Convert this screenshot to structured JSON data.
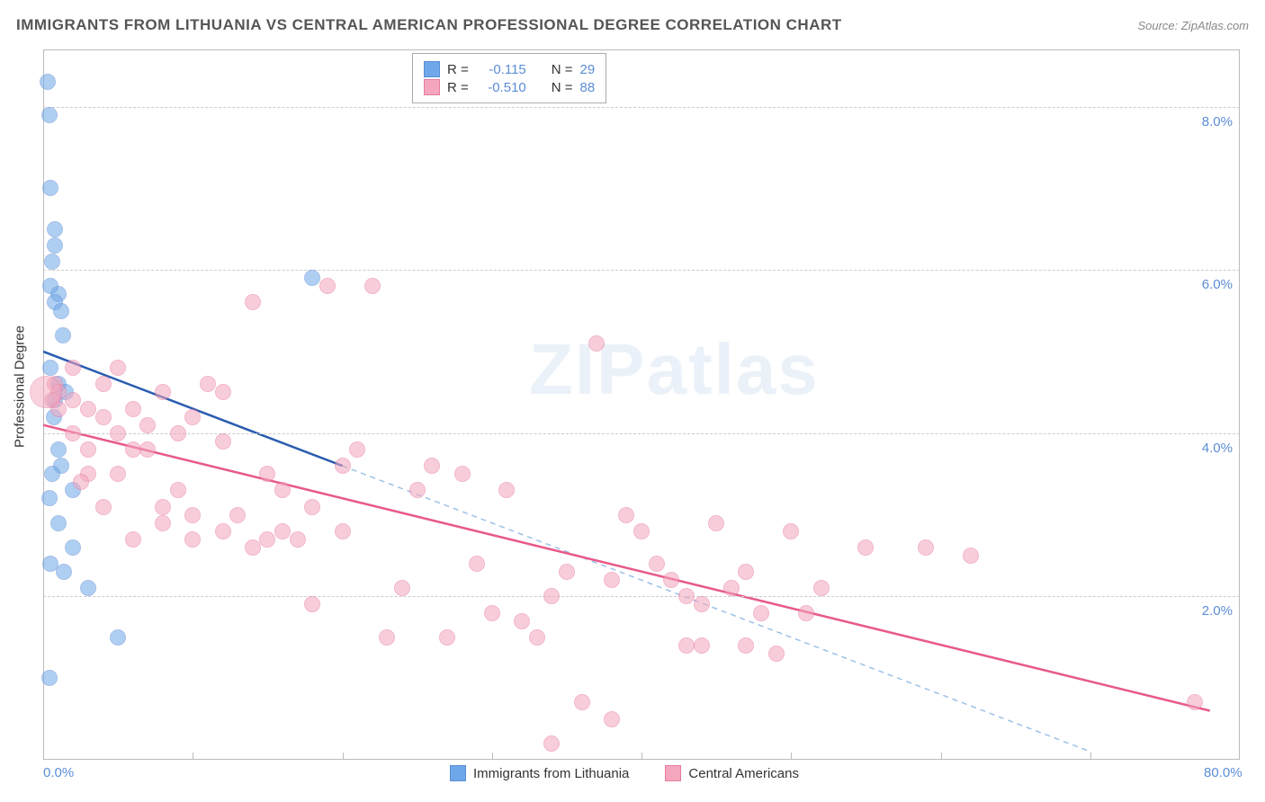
{
  "title": "IMMIGRANTS FROM LITHUANIA VS CENTRAL AMERICAN PROFESSIONAL DEGREE CORRELATION CHART",
  "source": "Source: ZipAtlas.com",
  "y_axis_label": "Professional Degree",
  "watermark": "ZIPatlas",
  "chart": {
    "type": "scatter",
    "xlim": [
      0,
      80
    ],
    "ylim": [
      0,
      8.7
    ],
    "x_ticks": [
      0,
      10,
      20,
      30,
      40,
      50,
      60,
      70,
      80
    ],
    "x_tick_labels": [
      "0.0%",
      "",
      "",
      "",
      "",
      "",
      "",
      "",
      "80.0%"
    ],
    "y_ticks": [
      2.0,
      4.0,
      6.0,
      8.0
    ],
    "y_tick_labels": [
      "2.0%",
      "4.0%",
      "6.0%",
      "8.0%"
    ],
    "background_color": "#ffffff",
    "grid_color": "#cccccc",
    "tick_label_color": "#5b8dd6",
    "point_radius": 9,
    "point_border_width": 1.5,
    "point_fill_opacity": 0.25
  },
  "series": [
    {
      "name": "Immigrants from Lithuania",
      "color": "#6fa8e8",
      "border_color": "#5b8dd6",
      "R": "-0.115",
      "N": "29",
      "trend": {
        "x1": 0,
        "y1": 5.0,
        "x2": 20,
        "y2": 3.6,
        "extend_x": 70,
        "extend_y": 0.1,
        "solid_color": "#2a5db0",
        "dash_color": "#9cc0e8",
        "width": 2.5
      },
      "points": [
        [
          0.3,
          8.3
        ],
        [
          0.4,
          7.9
        ],
        [
          0.5,
          7.0
        ],
        [
          0.8,
          6.5
        ],
        [
          0.8,
          6.3
        ],
        [
          1.0,
          5.7
        ],
        [
          0.8,
          5.6
        ],
        [
          1.2,
          5.5
        ],
        [
          1.3,
          5.2
        ],
        [
          0.5,
          4.8
        ],
        [
          1.0,
          4.6
        ],
        [
          1.5,
          4.5
        ],
        [
          0.7,
          4.2
        ],
        [
          1.0,
          3.8
        ],
        [
          1.2,
          3.6
        ],
        [
          0.6,
          3.5
        ],
        [
          2.0,
          3.3
        ],
        [
          1.0,
          2.9
        ],
        [
          2.0,
          2.6
        ],
        [
          0.5,
          2.4
        ],
        [
          1.4,
          2.3
        ],
        [
          3.0,
          2.1
        ],
        [
          0.4,
          1.0
        ],
        [
          5.0,
          1.5
        ],
        [
          0.5,
          5.8
        ],
        [
          18.0,
          5.9
        ],
        [
          0.8,
          4.4
        ],
        [
          0.4,
          3.2
        ],
        [
          0.6,
          6.1
        ]
      ]
    },
    {
      "name": "Central Americans",
      "color": "#f4a6bd",
      "border_color": "#e87ba0",
      "R": "-0.510",
      "N": "88",
      "trend": {
        "x1": 0,
        "y1": 4.1,
        "x2": 78,
        "y2": 0.6,
        "solid_color": "#e85a8a",
        "width": 2.5
      },
      "points": [
        [
          0.8,
          4.6
        ],
        [
          1.0,
          4.5
        ],
        [
          2.0,
          4.4
        ],
        [
          3.0,
          4.3
        ],
        [
          4.0,
          4.2
        ],
        [
          5.0,
          4.0
        ],
        [
          6.0,
          4.3
        ],
        [
          7.0,
          3.8
        ],
        [
          8.0,
          4.5
        ],
        [
          9.0,
          3.3
        ],
        [
          10.0,
          4.2
        ],
        [
          11.0,
          4.6
        ],
        [
          12.0,
          3.9
        ],
        [
          13.0,
          3.0
        ],
        [
          14.0,
          5.6
        ],
        [
          15.0,
          3.5
        ],
        [
          16.0,
          3.3
        ],
        [
          17.0,
          2.7
        ],
        [
          18.0,
          3.1
        ],
        [
          19.0,
          5.8
        ],
        [
          20.0,
          3.6
        ],
        [
          21.0,
          3.8
        ],
        [
          22.0,
          5.8
        ],
        [
          23.0,
          1.5
        ],
        [
          24.0,
          2.1
        ],
        [
          25.0,
          3.3
        ],
        [
          26.0,
          3.6
        ],
        [
          27.0,
          1.5
        ],
        [
          28.0,
          3.5
        ],
        [
          29.0,
          2.4
        ],
        [
          30.0,
          1.8
        ],
        [
          31.0,
          3.3
        ],
        [
          32.0,
          1.7
        ],
        [
          33.0,
          1.5
        ],
        [
          34.0,
          2.0
        ],
        [
          35.0,
          2.3
        ],
        [
          36.0,
          0.7
        ],
        [
          37.0,
          5.1
        ],
        [
          38.0,
          2.2
        ],
        [
          39.0,
          3.0
        ],
        [
          40.0,
          2.8
        ],
        [
          41.0,
          2.4
        ],
        [
          42.0,
          2.2
        ],
        [
          43.0,
          2.0
        ],
        [
          44.0,
          1.9
        ],
        [
          45.0,
          2.9
        ],
        [
          46.0,
          2.1
        ],
        [
          47.0,
          1.4
        ],
        [
          48.0,
          1.8
        ],
        [
          49.0,
          1.3
        ],
        [
          50.0,
          2.8
        ],
        [
          51.0,
          1.8
        ],
        [
          52.0,
          2.1
        ],
        [
          55.0,
          2.6
        ],
        [
          59.0,
          2.6
        ],
        [
          62.0,
          2.5
        ],
        [
          3.0,
          3.5
        ],
        [
          4.0,
          3.1
        ],
        [
          5.0,
          3.5
        ],
        [
          6.0,
          2.7
        ],
        [
          7.0,
          4.1
        ],
        [
          8.0,
          3.1
        ],
        [
          9.0,
          4.0
        ],
        [
          10.0,
          3.0
        ],
        [
          2.0,
          4.0
        ],
        [
          3.0,
          3.8
        ],
        [
          5.0,
          4.8
        ],
        [
          4.0,
          4.6
        ],
        [
          6.0,
          3.8
        ],
        [
          8.0,
          2.9
        ],
        [
          10.0,
          2.7
        ],
        [
          12.0,
          2.8
        ],
        [
          14.0,
          2.6
        ],
        [
          16.0,
          2.8
        ],
        [
          18.0,
          1.9
        ],
        [
          20.0,
          2.8
        ],
        [
          34.0,
          0.2
        ],
        [
          38.0,
          0.5
        ],
        [
          44.0,
          1.4
        ],
        [
          47.0,
          2.3
        ],
        [
          77.0,
          0.7
        ],
        [
          2.0,
          4.8
        ],
        [
          0.6,
          4.4
        ],
        [
          1.0,
          4.3
        ],
        [
          12.0,
          4.5
        ],
        [
          43.0,
          1.4
        ],
        [
          2.5,
          3.4
        ],
        [
          15.0,
          2.7
        ]
      ],
      "big_points": [
        [
          0.2,
          4.5,
          18
        ]
      ]
    }
  ],
  "legend_top": {
    "R_label": "R =",
    "N_label": "N ="
  },
  "legend_bottom_labels": [
    "Immigrants from Lithuania",
    "Central Americans"
  ]
}
